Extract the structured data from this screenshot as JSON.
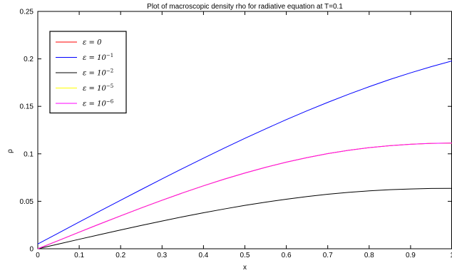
{
  "chart_data": {
    "type": "line",
    "title": "Plot of macroscopic density rho for radiative equation at T=0.1",
    "xlabel": "x",
    "ylabel": "ρ",
    "xlim": [
      0,
      1
    ],
    "ylim": [
      0,
      0.25
    ],
    "x_ticks": [
      "0",
      "0.1",
      "0.2",
      "0.3",
      "0.4",
      "0.5",
      "0.6",
      "0.7",
      "0.8",
      "0.9",
      "1"
    ],
    "y_ticks": [
      "0",
      "0.05",
      "0.1",
      "0.15",
      "0.2",
      "0.25"
    ],
    "grid": false,
    "legend_position": "top-left",
    "x": [
      0,
      0.05,
      0.1,
      0.15,
      0.2,
      0.25,
      0.3,
      0.35,
      0.4,
      0.45,
      0.5,
      0.55,
      0.6,
      0.65,
      0.7,
      0.75,
      0.8,
      0.85,
      0.9,
      0.95,
      1.0
    ],
    "series": [
      {
        "name_base": "ε = 0",
        "name_sup": "",
        "color": "#ff0000",
        "values": [
          0,
          0.0087,
          0.0175,
          0.0262,
          0.0347,
          0.043,
          0.0511,
          0.0589,
          0.0663,
          0.0733,
          0.0798,
          0.0858,
          0.0912,
          0.096,
          0.1002,
          0.1037,
          0.1065,
          0.1086,
          0.1101,
          0.111,
          0.1113
        ]
      },
      {
        "name_base": "ε = 10",
        "name_sup": "−1",
        "color": "#0000ff",
        "values": [
          0.005,
          0.0166,
          0.0282,
          0.0397,
          0.0511,
          0.0624,
          0.0736,
          0.0846,
          0.0954,
          0.106,
          0.1163,
          0.1263,
          0.136,
          0.1453,
          0.1542,
          0.1627,
          0.1707,
          0.1783,
          0.1853,
          0.1918,
          0.1978
        ]
      },
      {
        "name_base": "ε = 10",
        "name_sup": "−2",
        "color": "#000000",
        "values": [
          0,
          0.005,
          0.01,
          0.0149,
          0.0198,
          0.0246,
          0.0292,
          0.0337,
          0.0379,
          0.0419,
          0.0457,
          0.0491,
          0.0522,
          0.055,
          0.0574,
          0.0594,
          0.061,
          0.0622,
          0.063,
          0.0635,
          0.0636
        ]
      },
      {
        "name_base": "ε = 10",
        "name_sup": "−5",
        "color": "#ffff00",
        "values": [
          0,
          0.0087,
          0.0175,
          0.0262,
          0.0347,
          0.043,
          0.0511,
          0.0589,
          0.0663,
          0.0733,
          0.0798,
          0.0858,
          0.0912,
          0.096,
          0.1002,
          0.1037,
          0.1065,
          0.1086,
          0.1101,
          0.111,
          0.1113
        ]
      },
      {
        "name_base": "ε = 10",
        "name_sup": "−6",
        "color": "#ff00ff",
        "values": [
          0,
          0.0087,
          0.0175,
          0.0262,
          0.0347,
          0.043,
          0.0511,
          0.0589,
          0.0663,
          0.0733,
          0.0798,
          0.0858,
          0.0912,
          0.096,
          0.1002,
          0.1037,
          0.1065,
          0.1086,
          0.1101,
          0.111,
          0.1113
        ]
      }
    ]
  }
}
